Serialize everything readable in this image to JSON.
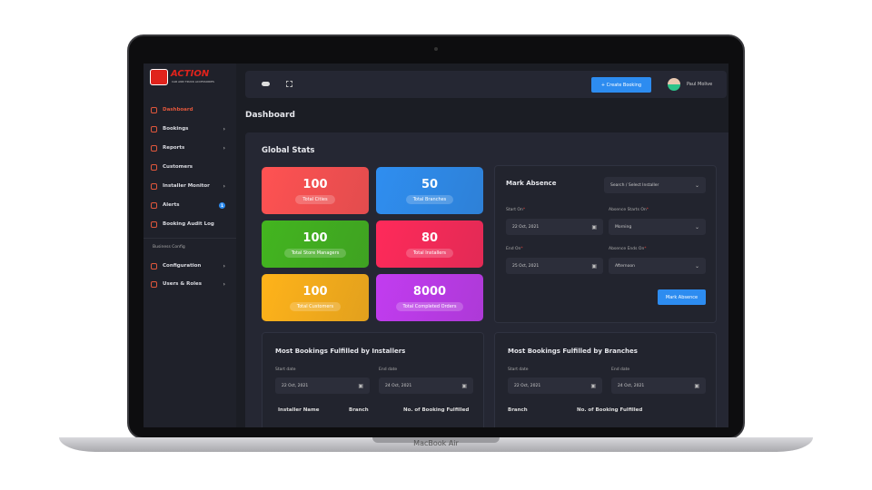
{
  "device": {
    "label": "MacBook Air"
  },
  "brand": {
    "name": "ACTION",
    "tagline": "CAR AND TRUCK ACCESSORIES",
    "color": "#e0231c"
  },
  "sidebar": {
    "items": [
      {
        "label": "Dashboard",
        "icon": "home-icon",
        "active": true
      },
      {
        "label": "Bookings",
        "icon": "calendar-icon",
        "chevron": true
      },
      {
        "label": "Reports",
        "icon": "clock-icon",
        "chevron": true
      },
      {
        "label": "Customers",
        "icon": "users-icon"
      },
      {
        "label": "Installer Monitor",
        "icon": "monitor-icon",
        "chevron": true
      },
      {
        "label": "Alerts",
        "icon": "alert-icon",
        "badge": "1"
      },
      {
        "label": "Booking Audit Log",
        "icon": "file-icon"
      }
    ],
    "section": "Business Config",
    "config_items": [
      {
        "label": "Configuration",
        "icon": "gear-icon",
        "chevron": true
      },
      {
        "label": "Users & Roles",
        "icon": "user-icon",
        "chevron": true
      }
    ]
  },
  "topbar": {
    "create_label": "+ Create Booking",
    "user": "Paul Molive"
  },
  "page_title": "Dashboard",
  "global_stats": {
    "title": "Global Stats",
    "cards": [
      {
        "value": "100",
        "label": "Total Cities",
        "color": "#ff5252"
      },
      {
        "value": "50",
        "label": "Total Branches",
        "color": "#2f8ef0"
      },
      {
        "value": "100",
        "label": "Total Store Managers",
        "color": "#43b51f"
      },
      {
        "value": "80",
        "label": "Total Installers",
        "color": "#ff2a5a"
      },
      {
        "value": "100",
        "label": "Total Customers",
        "color": "#ffb31a"
      },
      {
        "value": "8000",
        "label": "Total Completed Orders",
        "color": "#c23cf0"
      }
    ]
  },
  "mark_absence": {
    "title": "Mark Absence",
    "installer_placeholder": "Search / Select Installer",
    "start_label": "Start On",
    "start_value": "22 Oct, 2021",
    "starts_label": "Absence Starts On",
    "starts_value": "Morning",
    "end_label": "End On",
    "end_value": "25 Oct, 2021",
    "ends_label": "Absence Ends On",
    "ends_value": "Afternoon",
    "button": "Mark Absence"
  },
  "installers": {
    "title": "Most Bookings Fulfilled by Installers",
    "start_label": "Start date",
    "start_value": "22 Oct, 2021",
    "end_label": "End date",
    "end_value": "24 Oct, 2021",
    "columns": [
      "Installer Name",
      "Branch",
      "No. of Booking Fulfilled"
    ]
  },
  "branches": {
    "title": "Most Bookings Fulfilled by Branches",
    "start_label": "Start date",
    "start_value": "22 Oct, 2021",
    "end_label": "End date",
    "end_value": "24 Oct, 2021",
    "columns": [
      "Branch",
      "No. of Booking Fulfilled"
    ]
  }
}
